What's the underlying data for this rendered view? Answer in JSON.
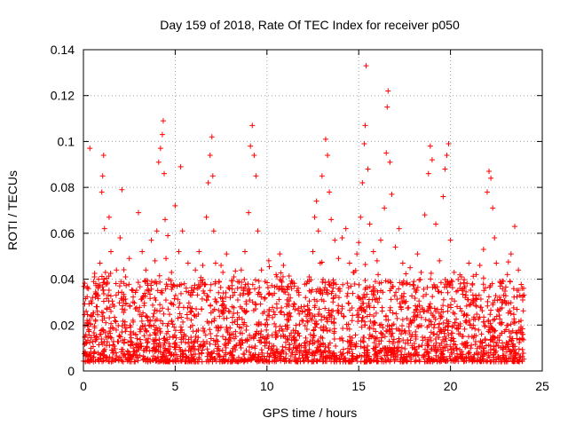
{
  "chart_data": {
    "type": "scatter",
    "title": "Day 159 of 2018, Rate Of TEC Index for receiver p050",
    "xlabel": "GPS time / hours",
    "ylabel": "ROTI / TECUs",
    "xlim": [
      0,
      25
    ],
    "ylim": [
      0,
      0.14
    ],
    "xticks": [
      0,
      5,
      10,
      15,
      20,
      25
    ],
    "xtick_labels": [
      "0",
      "5",
      "10",
      "15",
      "20",
      "25"
    ],
    "yticks": [
      0,
      0.02,
      0.04,
      0.06,
      0.08,
      0.1,
      0.12,
      0.14
    ],
    "ytick_labels": [
      "0",
      "0.02",
      "0.04",
      "0.06",
      "0.08",
      "0.1",
      "0.12",
      "0.14"
    ],
    "grid": true,
    "marker": "+",
    "color": "#ff0000",
    "series": [
      {
        "name": "ROTI",
        "x": [
          0.1,
          0.2,
          0.3,
          0.35,
          0.5,
          0.6,
          0.7,
          0.8,
          0.9,
          1.0,
          1.05,
          1.1,
          1.15,
          1.2,
          1.3,
          1.4,
          1.5,
          1.6,
          1.8,
          2.0,
          2.1,
          2.2,
          2.3,
          2.5,
          2.7,
          3.0,
          3.2,
          3.4,
          3.5,
          3.7,
          3.9,
          4.0,
          4.1,
          4.2,
          4.3,
          4.35,
          4.4,
          4.45,
          4.5,
          4.6,
          4.8,
          5.0,
          5.2,
          5.3,
          5.4,
          5.5,
          5.7,
          5.9,
          6.1,
          6.3,
          6.5,
          6.7,
          6.8,
          6.9,
          7.0,
          7.05,
          7.1,
          7.2,
          7.4,
          7.6,
          7.8,
          8.0,
          8.2,
          8.4,
          8.6,
          8.8,
          9.0,
          9.1,
          9.2,
          9.3,
          9.4,
          9.5,
          9.7,
          9.9,
          10.1,
          10.3,
          10.5,
          10.7,
          10.9,
          11.1,
          11.3,
          11.5,
          11.7,
          11.9,
          12.1,
          12.3,
          12.5,
          12.6,
          12.7,
          12.8,
          12.9,
          13.0,
          13.2,
          13.3,
          13.4,
          13.5,
          13.7,
          13.9,
          14.1,
          14.3,
          14.5,
          14.7,
          14.9,
          15.0,
          15.1,
          15.2,
          15.3,
          15.35,
          15.4,
          15.5,
          15.6,
          15.8,
          16.0,
          16.2,
          16.4,
          16.5,
          16.55,
          16.6,
          16.7,
          16.8,
          17.0,
          17.2,
          17.4,
          17.6,
          17.8,
          18.0,
          18.2,
          18.4,
          18.6,
          18.8,
          18.9,
          19.0,
          19.2,
          19.4,
          19.6,
          19.7,
          19.8,
          19.9,
          20.0,
          20.2,
          20.4,
          20.6,
          20.8,
          21.0,
          21.2,
          21.4,
          21.6,
          21.8,
          22.0,
          22.1,
          22.2,
          22.3,
          22.4,
          22.5,
          22.7,
          22.9,
          23.1,
          23.3,
          23.5,
          23.7,
          23.9
        ],
        "y": [
          0.012,
          0.022,
          0.018,
          0.097,
          0.032,
          0.041,
          0.028,
          0.036,
          0.047,
          0.078,
          0.085,
          0.094,
          0.062,
          0.043,
          0.038,
          0.067,
          0.052,
          0.029,
          0.044,
          0.058,
          0.079,
          0.031,
          0.041,
          0.049,
          0.035,
          0.069,
          0.052,
          0.044,
          0.038,
          0.057,
          0.048,
          0.061,
          0.091,
          0.097,
          0.103,
          0.109,
          0.086,
          0.066,
          0.049,
          0.059,
          0.043,
          0.072,
          0.052,
          0.089,
          0.061,
          0.038,
          0.047,
          0.033,
          0.044,
          0.052,
          0.046,
          0.067,
          0.082,
          0.094,
          0.102,
          0.085,
          0.061,
          0.047,
          0.039,
          0.043,
          0.051,
          0.032,
          0.041,
          0.036,
          0.044,
          0.052,
          0.069,
          0.098,
          0.107,
          0.094,
          0.085,
          0.061,
          0.044,
          0.039,
          0.048,
          0.033,
          0.042,
          0.051,
          0.046,
          0.031,
          0.038,
          0.029,
          0.036,
          0.022,
          0.032,
          0.041,
          0.052,
          0.067,
          0.074,
          0.061,
          0.047,
          0.085,
          0.101,
          0.094,
          0.078,
          0.066,
          0.057,
          0.049,
          0.058,
          0.062,
          0.047,
          0.043,
          0.051,
          0.056,
          0.067,
          0.082,
          0.099,
          0.107,
          0.133,
          0.088,
          0.064,
          0.052,
          0.048,
          0.057,
          0.071,
          0.095,
          0.115,
          0.122,
          0.091,
          0.077,
          0.054,
          0.062,
          0.047,
          0.038,
          0.045,
          0.039,
          0.051,
          0.043,
          0.068,
          0.086,
          0.098,
          0.092,
          0.064,
          0.048,
          0.076,
          0.088,
          0.094,
          0.099,
          0.057,
          0.043,
          0.035,
          0.041,
          0.032,
          0.047,
          0.038,
          0.042,
          0.046,
          0.053,
          0.078,
          0.087,
          0.084,
          0.071,
          0.058,
          0.047,
          0.039,
          0.033,
          0.042,
          0.051,
          0.063,
          0.044,
          0.036
        ]
      }
    ],
    "scatter_note": "Dense background band of ROTI values 0.005-0.035 TECU/min spanning 0-24 hours"
  }
}
